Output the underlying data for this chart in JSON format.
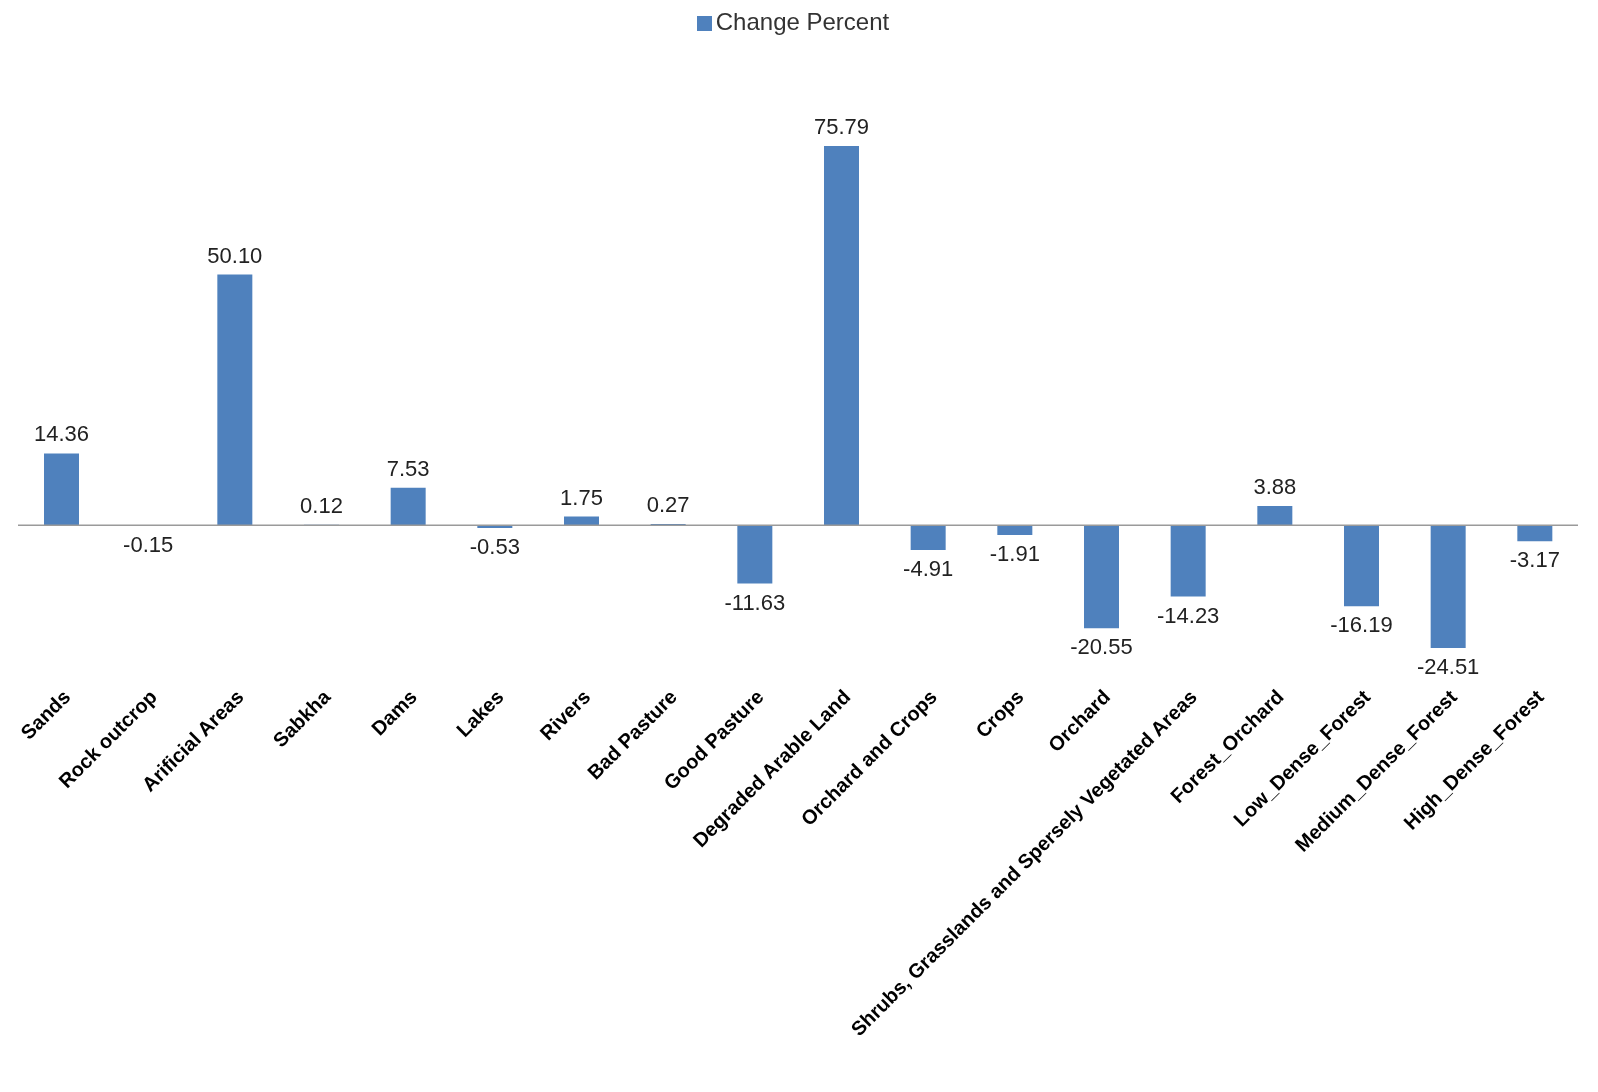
{
  "chart_data": {
    "type": "bar",
    "categories": [
      "Sands",
      "Rock outcrop",
      "Arificial Areas",
      "Sabkha",
      "Dams",
      "Lakes",
      "Rivers",
      "Bad Pasture",
      "Good Pasture",
      "Degraded Arable Land",
      "Orchard and Crops",
      "Crops",
      "Orchard",
      "Shrubs, Grasslands and Spersely Vegetated Areas",
      "Forest_Orchard",
      "Low_Dense_Forest",
      "Medium_Dense_Forest",
      "High_Dense_Forest"
    ],
    "series": [
      {
        "name": "Change Percent",
        "color": "#4f81bd",
        "values": [
          14.36,
          -0.15,
          50.1,
          0.12,
          7.53,
          -0.53,
          1.75,
          0.27,
          -11.63,
          75.79,
          -4.91,
          -1.91,
          -20.55,
          -14.23,
          3.88,
          -16.19,
          -24.51,
          -3.17
        ],
        "value_labels": [
          "14.36",
          "-0.15",
          "50.10",
          "0.12",
          "7.53",
          "-0.53",
          "1.75",
          "0.27",
          "-11.63",
          "75.79",
          "-4.91",
          "-1.91",
          "-20.55",
          "-14.23",
          "3.88",
          "-16.19",
          "-24.51",
          "-3.17"
        ]
      }
    ],
    "legend": "top"
  }
}
